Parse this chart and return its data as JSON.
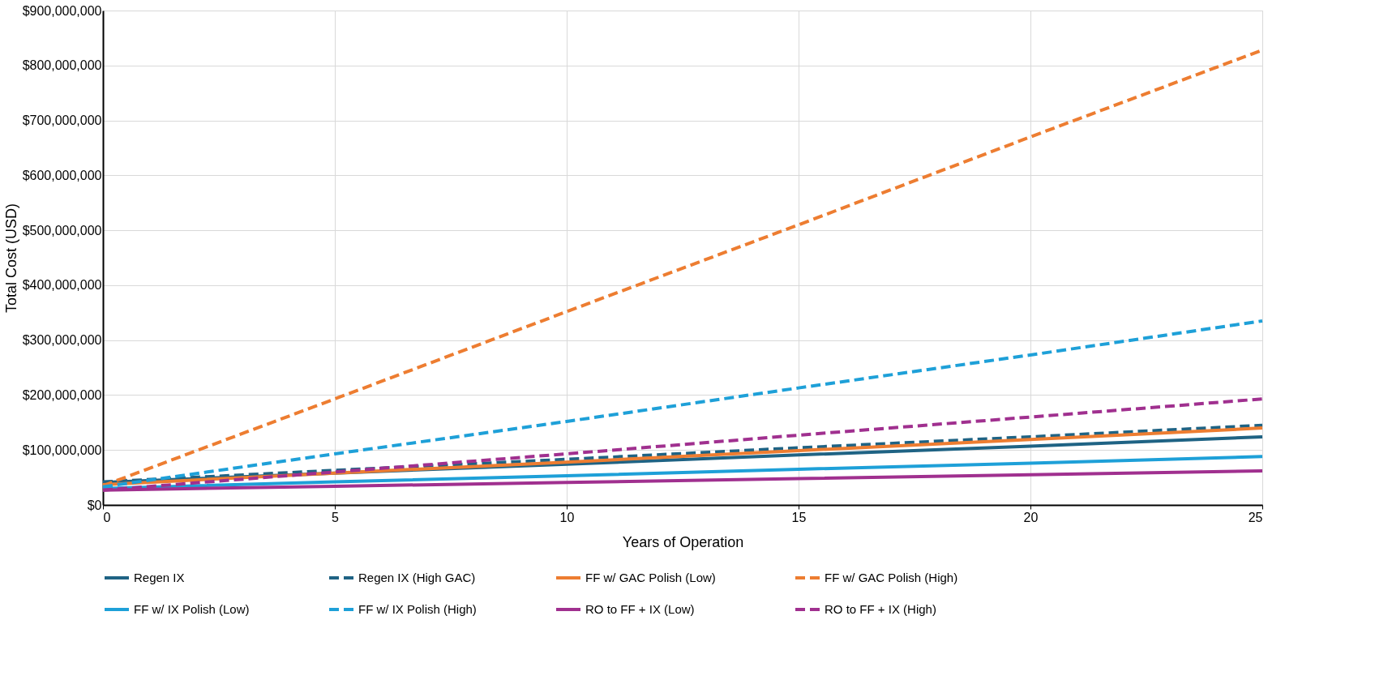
{
  "chart_data": {
    "type": "line",
    "xlabel": "Years of Operation",
    "ylabel": "Total Cost (USD)",
    "xlim": [
      0,
      25
    ],
    "xticks": [
      0,
      5,
      10,
      15,
      20,
      25
    ],
    "ylim": [
      0,
      900000000
    ],
    "yticks": [
      {
        "value": 0,
        "label": "$0"
      },
      {
        "value": 100000000,
        "label": "$100,000,000"
      },
      {
        "value": 200000000,
        "label": "$200,000,000"
      },
      {
        "value": 300000000,
        "label": "$300,000,000"
      },
      {
        "value": 400000000,
        "label": "$400,000,000"
      },
      {
        "value": 500000000,
        "label": "$500,000,000"
      },
      {
        "value": 600000000,
        "label": "$600,000,000"
      },
      {
        "value": 700000000,
        "label": "$700,000,000"
      },
      {
        "value": 800000000,
        "label": "$800,000,000"
      },
      {
        "value": 900000000,
        "label": "$900,000,000"
      }
    ],
    "x": [
      0,
      5,
      10,
      15,
      20,
      25
    ],
    "grid": true,
    "legend": "bottom",
    "marker": "none",
    "series": [
      {
        "name": "Regen IX",
        "color": "#1f6384",
        "line_style": "solid",
        "values": [
          41000000,
          58000000,
          74000000,
          91000000,
          107000000,
          124000000
        ]
      },
      {
        "name": "Regen IX (High GAC)",
        "color": "#1f6384",
        "line_style": "dashed",
        "values": [
          42000000,
          63000000,
          83000000,
          104000000,
          124000000,
          145000000
        ]
      },
      {
        "name": "FF w/ GAC Polish (Low)",
        "color": "#ed7d31",
        "line_style": "solid",
        "values": [
          37000000,
          58000000,
          78000000,
          99000000,
          119000000,
          140000000
        ]
      },
      {
        "name": "FF w/ GAC Polish (High)",
        "color": "#ed7d31",
        "line_style": "dashed",
        "values": [
          35000000,
          193000000,
          352000000,
          510000000,
          670000000,
          828000000
        ]
      },
      {
        "name": "FF w/ IX Polish (Low)",
        "color": "#1ea0d8",
        "line_style": "solid",
        "values": [
          30000000,
          42000000,
          53000000,
          65000000,
          76000000,
          88000000
        ]
      },
      {
        "name": "FF w/ IX Polish (High)",
        "color": "#1ea0d8",
        "line_style": "dashed",
        "values": [
          33000000,
          93000000,
          152000000,
          213000000,
          273000000,
          335000000
        ]
      },
      {
        "name": "RO to FF + IX (Low)",
        "color": "#a0308f",
        "line_style": "solid",
        "values": [
          27000000,
          34000000,
          41000000,
          48000000,
          55000000,
          62000000
        ]
      },
      {
        "name": "RO to FF + IX (High)",
        "color": "#a0308f",
        "line_style": "dashed",
        "values": [
          27000000,
          60000000,
          93000000,
          127000000,
          160000000,
          193000000
        ]
      }
    ]
  }
}
